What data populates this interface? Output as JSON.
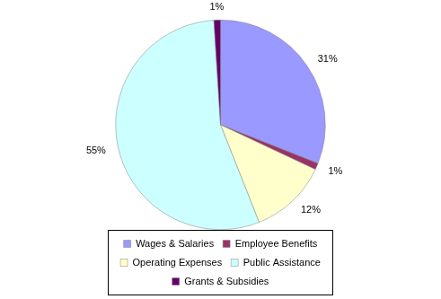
{
  "chart_data": {
    "type": "pie",
    "categories": [
      "Wages & Salaries",
      "Employee Benefits",
      "Operating Expenses",
      "Public Assistance",
      "Grants & Subsidies"
    ],
    "values": [
      31,
      1,
      12,
      55,
      1
    ],
    "value_labels": [
      "31%",
      "1%",
      "12%",
      "55%",
      "1%"
    ],
    "colors": [
      "#9999ff",
      "#993366",
      "#ffffcc",
      "#ccffff",
      "#660066"
    ],
    "data_labels": true,
    "legend": "bottom"
  }
}
